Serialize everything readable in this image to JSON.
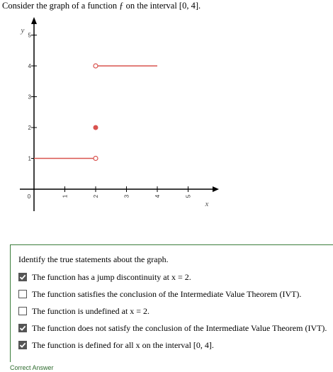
{
  "question": "Consider the graph of a function ƒ on the interval [0, 4].",
  "prompt": "Identify the true statements about the graph.",
  "options": [
    {
      "label": "The function has a jump discontinuity at x = 2.",
      "checked": true
    },
    {
      "label": "The function satisfies the conclusion of the Intermediate Value Theorem (IVT).",
      "checked": false
    },
    {
      "label": "The function is undefined at x = 2.",
      "checked": false
    },
    {
      "label": "The function does not satisfy the conclusion of the Intermediate Value Theorem (IVT).",
      "checked": true
    },
    {
      "label": "The function is defined for all x on the interval [0, 4].",
      "checked": true
    }
  ],
  "status": "Correct Answer",
  "colors": {
    "curve": "#d9534f",
    "axis": "#000000",
    "correct": "#2e6b2e",
    "checkbox": "#555555"
  },
  "chart_data": {
    "type": "line",
    "xlabel": "x",
    "ylabel": "y",
    "xlim": [
      0,
      5.5
    ],
    "ylim": [
      0,
      5.5
    ],
    "x_ticks": [
      "0",
      "1",
      "2",
      "3",
      "4",
      "5"
    ],
    "y_ticks": [
      "1",
      "2",
      "3",
      "4",
      "5"
    ],
    "segments": [
      {
        "x0": 0,
        "x1": 2,
        "y": 1,
        "start": "none",
        "end": "open"
      },
      {
        "x0": 2,
        "x1": 4,
        "y": 4,
        "start": "open",
        "end": "none"
      }
    ],
    "points": [
      {
        "x": 2,
        "y": 2,
        "type": "closed"
      }
    ]
  }
}
